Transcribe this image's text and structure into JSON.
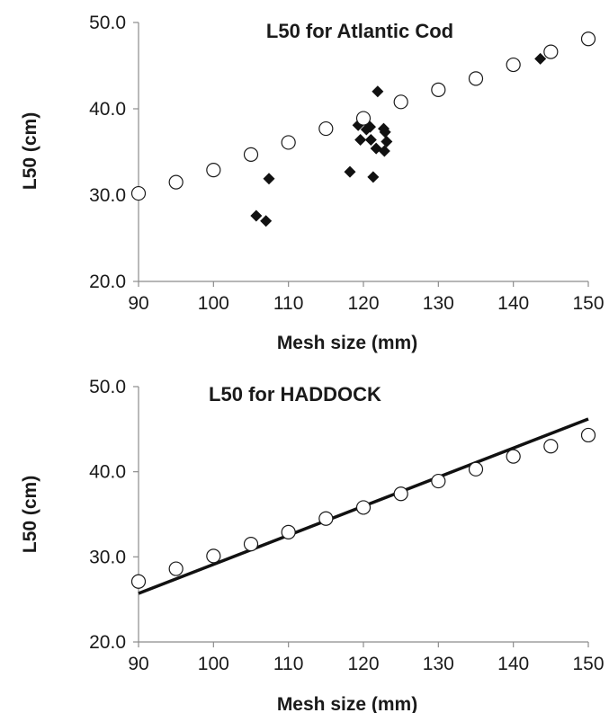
{
  "chart_data": [
    {
      "type": "scatter",
      "title": "L50 for Atlantic Cod",
      "xlabel": "Mesh size (mm)",
      "ylabel": "L50 (cm)",
      "xlim": [
        90,
        150
      ],
      "ylim": [
        20,
        50
      ],
      "xticks": [
        "90",
        "100",
        "110",
        "120",
        "130",
        "140",
        "150"
      ],
      "yticks": [
        "20.0",
        "30.0",
        "40.0",
        "50.0"
      ],
      "grid": false,
      "legend": "none",
      "series": [
        {
          "marker": "open-circle",
          "points": [
            [
              90,
              30.2
            ],
            [
              95,
              31.5
            ],
            [
              100,
              32.9
            ],
            [
              105,
              34.7
            ],
            [
              110,
              36.1
            ],
            [
              115,
              37.7
            ],
            [
              120,
              38.9
            ],
            [
              125,
              40.8
            ],
            [
              130,
              42.2
            ],
            [
              135,
              43.5
            ],
            [
              140,
              45.1
            ],
            [
              145,
              46.6
            ],
            [
              150,
              48.1
            ]
          ]
        },
        {
          "marker": "filled-diamond",
          "points": [
            [
              105.7,
              27.6
            ],
            [
              107,
              27.0
            ],
            [
              107.4,
              31.9
            ],
            [
              118.2,
              32.7
            ],
            [
              119.3,
              38.1
            ],
            [
              119.6,
              36.4
            ],
            [
              120.4,
              37.6
            ],
            [
              120.9,
              37.9
            ],
            [
              121,
              36.4
            ],
            [
              121.3,
              32.1
            ],
            [
              121.7,
              35.4
            ],
            [
              121.9,
              42.0
            ],
            [
              122.7,
              37.7
            ],
            [
              122.8,
              35.1
            ],
            [
              122.9,
              37.3
            ],
            [
              123.1,
              36.2
            ],
            [
              139.9,
              45.0
            ],
            [
              143.6,
              45.8
            ]
          ]
        }
      ]
    },
    {
      "type": "scatter",
      "title": "L50 for HADDOCK",
      "xlabel": "Mesh size (mm)",
      "ylabel": "L50 (cm)",
      "xlim": [
        90,
        150
      ],
      "ylim": [
        20,
        50
      ],
      "xticks": [
        "90",
        "100",
        "110",
        "120",
        "130",
        "140",
        "150"
      ],
      "yticks": [
        "20.0",
        "30.0",
        "40.0",
        "50.0"
      ],
      "grid": false,
      "legend": "none",
      "series": [
        {
          "marker": "open-circle",
          "points": [
            [
              90,
              27.1
            ],
            [
              95,
              28.6
            ],
            [
              100,
              30.1
            ],
            [
              105,
              31.5
            ],
            [
              110,
              32.9
            ],
            [
              115,
              34.5
            ],
            [
              120,
              35.8
            ],
            [
              125,
              37.4
            ],
            [
              130,
              38.9
            ],
            [
              135,
              40.3
            ],
            [
              140,
              41.8
            ],
            [
              145,
              43.0
            ],
            [
              150,
              44.3
            ]
          ]
        }
      ],
      "trend_line": [
        [
          90,
          25.7
        ],
        [
          150,
          46.2
        ]
      ]
    }
  ]
}
